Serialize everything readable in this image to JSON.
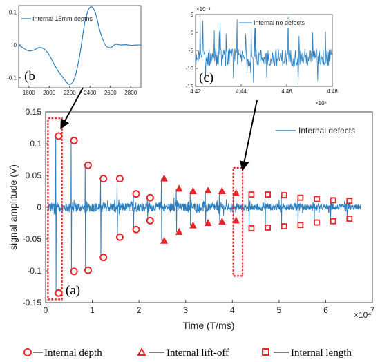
{
  "chart_data": [
    {
      "id": "main",
      "type": "line",
      "xlabel": "Time (T/ms)",
      "ylabel": "signal amplitude (V)",
      "x_exponent_label": "×10⁴",
      "xlim": [
        0,
        7
      ],
      "ylim": [
        -0.15,
        0.15
      ],
      "xticks": [
        "0",
        "1",
        "2",
        "3",
        "4",
        "5",
        "6",
        "7"
      ],
      "yticks": [
        "0.15",
        "0.1",
        "0.05",
        "0",
        "-0.05",
        "-0.1",
        "-0.15"
      ],
      "legend": "Internal defects",
      "legend_position": "top-right",
      "panel_label": "(a)",
      "line_color": "#2b7fc0",
      "marker_color": "#e8262a",
      "pulses": [
        {
          "x": 0.22,
          "top": 0.112,
          "bottom": -0.135,
          "marker": "circle"
        },
        {
          "x": 0.55,
          "top": 0.105,
          "bottom": -0.101,
          "marker": "circle"
        },
        {
          "x": 0.85,
          "top": 0.066,
          "bottom": -0.099,
          "marker": "circle"
        },
        {
          "x": 1.18,
          "top": 0.045,
          "bottom": -0.079,
          "marker": "circle"
        },
        {
          "x": 1.53,
          "top": 0.045,
          "bottom": -0.047,
          "marker": "circle"
        },
        {
          "x": 1.88,
          "top": 0.021,
          "bottom": -0.035,
          "marker": "circle"
        },
        {
          "x": 2.18,
          "top": 0.015,
          "bottom": -0.021,
          "marker": "circle"
        },
        {
          "x": 2.48,
          "top": 0.045,
          "bottom": -0.053,
          "marker": "triangle"
        },
        {
          "x": 2.8,
          "top": 0.029,
          "bottom": -0.039,
          "marker": "triangle"
        },
        {
          "x": 3.1,
          "top": 0.025,
          "bottom": -0.029,
          "marker": "triangle"
        },
        {
          "x": 3.42,
          "top": 0.026,
          "bottom": -0.025,
          "marker": "triangle"
        },
        {
          "x": 3.72,
          "top": 0.025,
          "bottom": -0.023,
          "marker": "triangle"
        },
        {
          "x": 4.02,
          "top": 0.022,
          "bottom": -0.021,
          "marker": "triangle"
        },
        {
          "x": 4.35,
          "top": 0.02,
          "bottom": -0.033,
          "marker": "square"
        },
        {
          "x": 4.7,
          "top": 0.02,
          "bottom": -0.032,
          "marker": "square"
        },
        {
          "x": 5.05,
          "top": 0.019,
          "bottom": -0.03,
          "marker": "square"
        },
        {
          "x": 5.4,
          "top": 0.015,
          "bottom": -0.028,
          "marker": "square"
        },
        {
          "x": 5.75,
          "top": 0.013,
          "bottom": -0.024,
          "marker": "square"
        },
        {
          "x": 6.1,
          "top": 0.011,
          "bottom": -0.022,
          "marker": "square"
        },
        {
          "x": 6.45,
          "top": 0.01,
          "bottom": -0.018,
          "marker": "square"
        }
      ],
      "highlights": [
        {
          "x_range": [
            0.05,
            0.35
          ],
          "y_range": [
            -0.145,
            0.14
          ]
        },
        {
          "x_range": [
            4.02,
            4.22
          ],
          "y_range": [
            -0.108,
            0.062
          ]
        }
      ]
    },
    {
      "id": "inset_b",
      "type": "line",
      "legend": "Internal 15mm depths",
      "legend_position": "top-left",
      "panel_label": "(b",
      "xlim": [
        1700,
        2900
      ],
      "ylim": [
        -0.13,
        0.12
      ],
      "xticks": [
        "1800",
        "2000",
        "2200",
        "2400",
        "2600",
        "2800"
      ],
      "yticks": [
        "0.1",
        "0",
        "-0.1"
      ],
      "x": [
        1700,
        1750,
        1800,
        1850,
        1900,
        1950,
        2000,
        2050,
        2100,
        2150,
        2200,
        2250,
        2300,
        2350,
        2400,
        2450,
        2500,
        2550,
        2600,
        2650,
        2700,
        2750,
        2800,
        2850,
        2900
      ],
      "y": [
        0.0,
        -0.01,
        -0.018,
        -0.015,
        -0.008,
        -0.012,
        -0.03,
        -0.06,
        -0.085,
        -0.105,
        -0.12,
        -0.1,
        -0.03,
        0.07,
        0.115,
        0.1,
        0.04,
        0.0,
        -0.008,
        0.002,
        0.0,
        0.001,
        -0.001,
        0.0,
        0.0
      ]
    },
    {
      "id": "inset_c",
      "type": "line",
      "legend": "Internal no defects",
      "legend_position": "top-right",
      "panel_label": "(c)",
      "y_exponent_label": "×10⁻³",
      "x_exponent_label": "×10⁴",
      "xlim": [
        4.42,
        4.48
      ],
      "ylim": [
        -15,
        5
      ],
      "xticks": [
        "4.42",
        "4.44",
        "4.46",
        "4.48"
      ],
      "yticks": [
        "5",
        "0",
        "-5",
        "-10",
        "-15"
      ],
      "baseline": -7
    }
  ],
  "bottom_legend": [
    {
      "marker": "circle",
      "label": "Internal depth"
    },
    {
      "marker": "triangle",
      "label": "Internal lift-off"
    },
    {
      "marker": "square",
      "label": "Internal length"
    }
  ]
}
